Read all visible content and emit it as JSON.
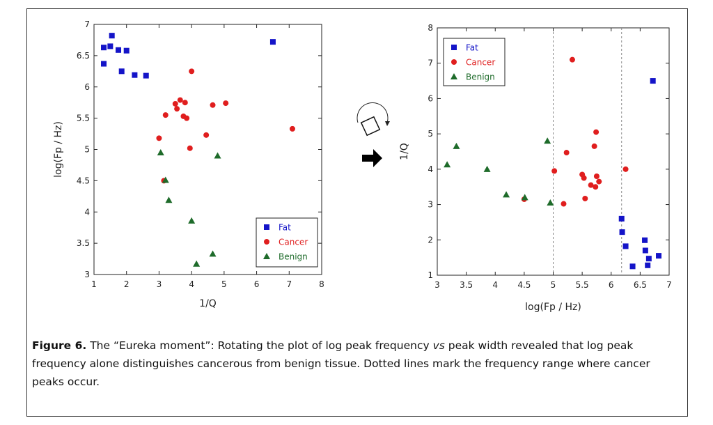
{
  "caption": {
    "figure_label": "Figure 6.",
    "text_before_vs": " The “Eureka moment”: Rotating the plot of log peak frequency ",
    "vs_word": "vs",
    "text_after_vs": " peak width revealed that log peak frequency alone distinguishes cancerous from benign tissue. Dotted lines mark the frequency range where cancer peaks occur."
  },
  "colors": {
    "fat": "#1414c8",
    "cancer": "#e01e1e",
    "benign": "#1e6b2a",
    "dotted_line": "#888888"
  },
  "icons": [
    "rotate-icon",
    "right-arrow-icon"
  ],
  "chart_data": [
    {
      "type": "scatter",
      "xlabel": "1/Q",
      "ylabel": "log(Fp / Hz)",
      "xlim": [
        1,
        8
      ],
      "ylim": [
        3,
        7
      ],
      "xticks": [
        "1",
        "2",
        "3",
        "4",
        "5",
        "6",
        "7",
        "8"
      ],
      "yticks": [
        "3",
        "3.5",
        "4",
        "4.5",
        "5",
        "5.5",
        "6",
        "6.5",
        "7"
      ],
      "legend_position": "bottom-right",
      "series": [
        {
          "name": "Fat",
          "marker": "square",
          "points": [
            [
              1.3,
              6.37
            ],
            [
              1.3,
              6.63
            ],
            [
              1.5,
              6.65
            ],
            [
              1.55,
              6.82
            ],
            [
              1.75,
              6.59
            ],
            [
              1.85,
              6.25
            ],
            [
              2.0,
              6.58
            ],
            [
              2.25,
              6.19
            ],
            [
              2.6,
              6.18
            ],
            [
              6.5,
              6.72
            ]
          ]
        },
        {
          "name": "Cancer",
          "marker": "circle",
          "points": [
            [
              3.0,
              5.18
            ],
            [
              3.15,
              4.5
            ],
            [
              3.2,
              5.55
            ],
            [
              3.5,
              5.73
            ],
            [
              3.55,
              5.65
            ],
            [
              3.65,
              5.79
            ],
            [
              3.75,
              5.53
            ],
            [
              3.8,
              5.75
            ],
            [
              3.85,
              5.5
            ],
            [
              3.95,
              5.02
            ],
            [
              4.0,
              6.25
            ],
            [
              4.45,
              5.23
            ],
            [
              4.65,
              5.71
            ],
            [
              5.05,
              5.74
            ],
            [
              7.1,
              5.33
            ]
          ]
        },
        {
          "name": "Benign",
          "marker": "triangle",
          "points": [
            [
              3.05,
              4.95
            ],
            [
              3.2,
              4.51
            ],
            [
              3.3,
              4.19
            ],
            [
              4.0,
              3.86
            ],
            [
              4.15,
              3.17
            ],
            [
              4.65,
              3.33
            ],
            [
              4.8,
              4.9
            ]
          ]
        }
      ]
    },
    {
      "type": "scatter",
      "xlabel": "log(Fp / Hz)",
      "ylabel": "1/Q",
      "xlim": [
        3,
        7
      ],
      "ylim": [
        1,
        8
      ],
      "xticks": [
        "3",
        "3.5",
        "4",
        "4.5",
        "5",
        "5.5",
        "6",
        "6.5",
        "7"
      ],
      "yticks": [
        "1",
        "2",
        "3",
        "4",
        "5",
        "6",
        "7",
        "8"
      ],
      "vertical_dotted_lines_at": [
        5,
        6.18
      ],
      "legend_position": "top-left",
      "series": [
        {
          "name": "Fat",
          "marker": "square",
          "points": [
            [
              6.18,
              2.6
            ],
            [
              6.19,
              2.22
            ],
            [
              6.25,
              1.82
            ],
            [
              6.37,
              1.25
            ],
            [
              6.58,
              1.99
            ],
            [
              6.59,
              1.7
            ],
            [
              6.63,
              1.28
            ],
            [
              6.65,
              1.47
            ],
            [
              6.72,
              6.5
            ],
            [
              6.82,
              1.55
            ]
          ]
        },
        {
          "name": "Cancer",
          "marker": "circle",
          "points": [
            [
              4.5,
              3.15
            ],
            [
              5.02,
              3.95
            ],
            [
              5.18,
              3.02
            ],
            [
              5.23,
              4.47
            ],
            [
              5.33,
              7.1
            ],
            [
              5.5,
              3.85
            ],
            [
              5.53,
              3.75
            ],
            [
              5.55,
              3.17
            ],
            [
              5.65,
              3.55
            ],
            [
              5.71,
              4.65
            ],
            [
              5.73,
              3.5
            ],
            [
              5.74,
              5.05
            ],
            [
              5.75,
              3.8
            ],
            [
              5.79,
              3.65
            ],
            [
              6.25,
              4.0
            ]
          ]
        },
        {
          "name": "Benign",
          "marker": "triangle",
          "points": [
            [
              3.17,
              4.13
            ],
            [
              3.33,
              4.65
            ],
            [
              3.86,
              4.0
            ],
            [
              4.19,
              3.28
            ],
            [
              4.51,
              3.2
            ],
            [
              4.9,
              4.8
            ],
            [
              4.95,
              3.05
            ]
          ]
        }
      ]
    }
  ]
}
